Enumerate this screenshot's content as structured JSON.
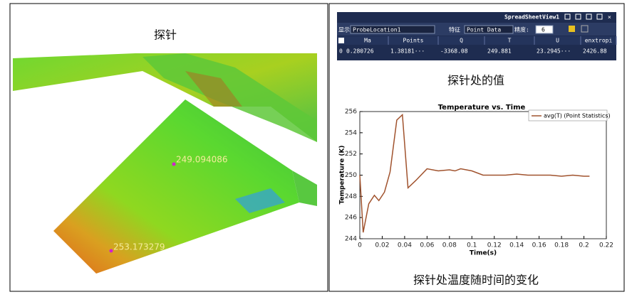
{
  "left": {
    "caption": "探针",
    "probe_labels": [
      "249.094086",
      "253.173279"
    ]
  },
  "spreadsheet": {
    "title": "SpreadSheetView1",
    "toolbar": {
      "show_label": "显示",
      "source": "ProbeLocation1",
      "attribute_label": "特征",
      "attribute": "Point Data",
      "precision_label": "精度:",
      "precision": "6"
    },
    "columns": [
      "Ma",
      "Points",
      "Q",
      "T",
      "U",
      "enxtropi"
    ],
    "rows": [
      [
        "0",
        "0.280726",
        "1.38181···",
        "-3368.08",
        "249.881",
        "23.2945···",
        "2426.88"
      ]
    ],
    "caption": "探针处的值"
  },
  "chart_caption": "探针处温度随时间的变化",
  "chart_data": {
    "type": "line",
    "title": "Temperature vs. Time",
    "xlabel": "Time(s)",
    "ylabel": "Temperature (K)",
    "x": [
      0,
      0.003,
      0.008,
      0.013,
      0.017,
      0.022,
      0.027,
      0.033,
      0.038,
      0.043,
      0.05,
      0.06,
      0.07,
      0.08,
      0.085,
      0.09,
      0.1,
      0.11,
      0.12,
      0.13,
      0.14,
      0.15,
      0.16,
      0.17,
      0.18,
      0.19,
      0.2,
      0.205
    ],
    "series": [
      {
        "name": "avg(T) (Point Statistics)",
        "color": "#a0522d",
        "values": [
          250,
          244.6,
          247.3,
          248.1,
          247.6,
          248.4,
          250.3,
          255.2,
          255.7,
          248.8,
          249.5,
          250.6,
          250.4,
          250.5,
          250.4,
          250.6,
          250.4,
          250.0,
          250.0,
          250.0,
          250.1,
          250.0,
          250.0,
          250.0,
          249.9,
          250.0,
          249.9,
          249.9
        ]
      }
    ],
    "xlim": [
      0,
      0.22
    ],
    "xticks": [
      0,
      0.02,
      0.04,
      0.06,
      0.08,
      0.1,
      0.12,
      0.14,
      0.16,
      0.18,
      0.2,
      0.22
    ],
    "ylim": [
      244,
      256
    ],
    "yticks": [
      244,
      246,
      248,
      250,
      252,
      254,
      256
    ],
    "legend": "upper right"
  }
}
